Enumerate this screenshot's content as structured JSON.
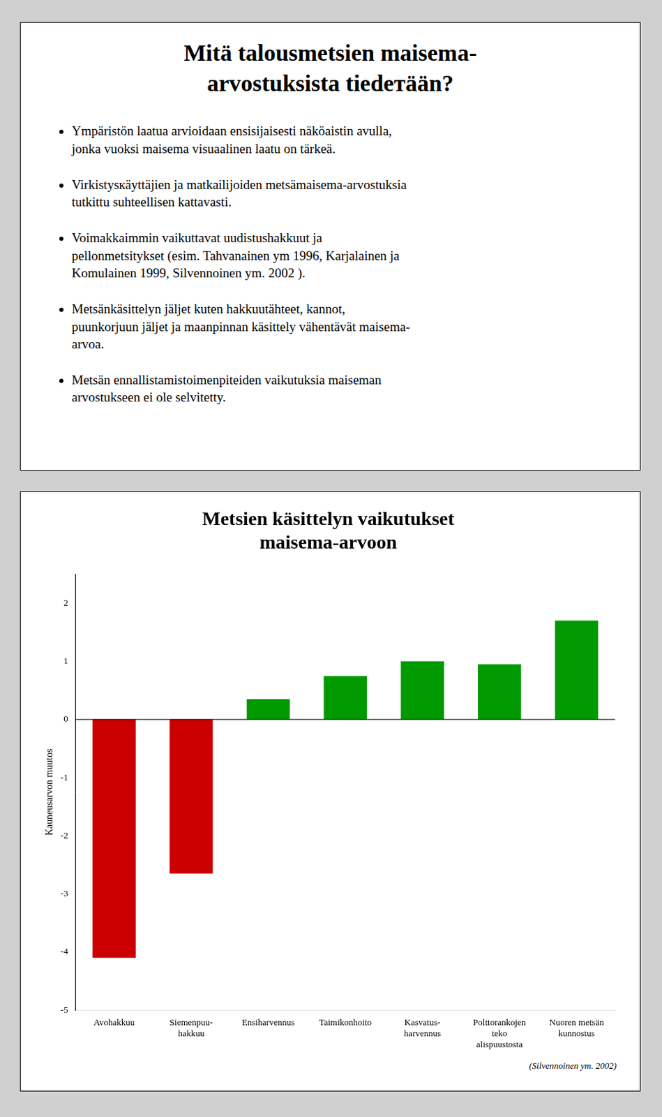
{
  "heading": "Mitä talousmetsien maisema-\narvostuksista tiedетään?",
  "bullet_points": [
    "Ympäristön laatua arvioidaan ensisijaisesti näköaistin avulla,\njonka vuoksi maisema visuaalinen laatu on tärkeä.",
    "Virkistysкäyttäjien ja matkailijoiden metsämaisema-arvostuksia\ntutkittu suhteellisen kattavasti.",
    "Voimakkaimmin vaikuttavat uudistushakkuut ja\npellonmetsitykset (esim. Tahvanainen ym 1996, Karjalainen ja\nKomulainen 1999, Silvennoinen ym. 2002 ).",
    "Metsänkäsittelyn jäljet kuten hakkuutähteet,  kannot,\npuunkorjuun jäljet ja maanpinnan käsittely vähentävät maisema-\narvoa.",
    "Metsän ennallistamistoimenpiteiden vaikutuksia maiseman\narvostukseen ei ole selvitetty."
  ],
  "chart_data": {
    "type": "bar",
    "title": [
      "Metsien käsittelyn vaikutukset",
      "maisema-arvoon"
    ],
    "annotations": [
      "(Silvennoinen ym. 2002)"
    ],
    "categories": [
      "Avohakkuu",
      "Siemenpuu-\nhakkuu",
      "Ensiharvennus",
      "Taimikonhoito",
      "Kasvatus-\nharvennus",
      "Polttorankojen\nteko\nalispuustosta",
      "Nuoren metsän\nkunnostus"
    ],
    "values": [
      -4.1,
      -2.65,
      0.35,
      0.75,
      1.0,
      0.95,
      1.7
    ],
    "colors": [
      "#cc0000",
      "#cc0000",
      "#009900",
      "#009900",
      "#009900",
      "#009900",
      "#009900"
    ],
    "ylabel": "Kauneusarvon muutos",
    "ylim": [
      -5,
      2.5
    ],
    "yticks": [
      -5,
      -4,
      -3,
      -2,
      -1,
      0,
      1,
      2
    ],
    "grid": false
  }
}
